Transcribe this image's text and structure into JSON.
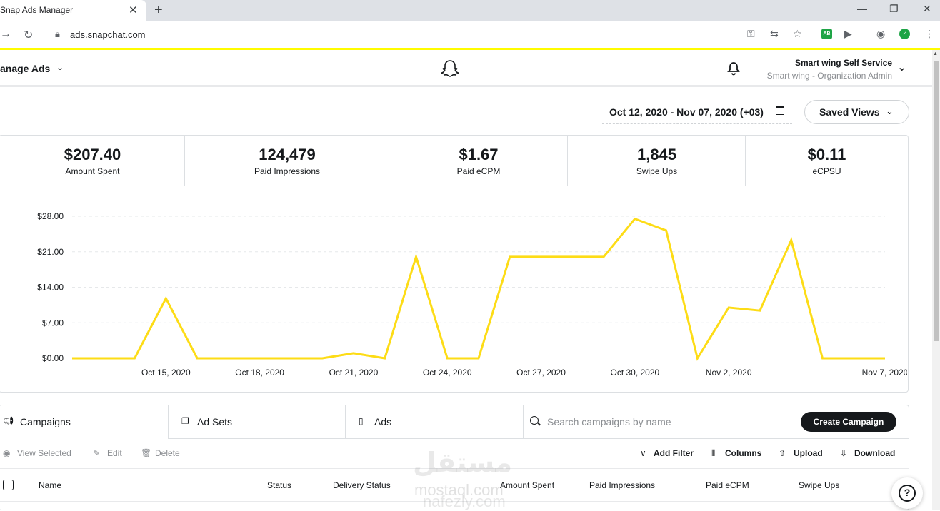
{
  "browser": {
    "tab_title": "Snap Ads Manager",
    "tab_close": "✕",
    "new_tab": "+",
    "url": "ads.snapchat.com",
    "win_min": "—",
    "win_restore": "❐",
    "win_close": "✕"
  },
  "header": {
    "menu_label": "anage Ads",
    "account_name": "Smart wing Self Service",
    "account_role": "Smart wing - Organization Admin"
  },
  "toolbar": {
    "date_range": "Oct 12, 2020 - Nov 07, 2020 (+03)",
    "saved_views": "Saved Views"
  },
  "metrics": [
    {
      "value": "$207.40",
      "label": "Amount Spent"
    },
    {
      "value": "124,479",
      "label": "Paid Impressions"
    },
    {
      "value": "$1.67",
      "label": "Paid eCPM"
    },
    {
      "value": "1,845",
      "label": "Swipe Ups"
    },
    {
      "value": "$0.11",
      "label": "eCPSU"
    }
  ],
  "chart_data": {
    "type": "line",
    "title": "",
    "xlabel": "",
    "ylabel": "",
    "ylim": [
      0,
      28
    ],
    "yticks": [
      "$0.00",
      "$7.00",
      "$14.00",
      "$21.00",
      "$28.00"
    ],
    "xtick_labels": [
      "Oct 15, 2020",
      "Oct 18, 2020",
      "Oct 21, 2020",
      "Oct 24, 2020",
      "Oct 27, 2020",
      "Oct 30, 2020",
      "Nov 2, 2020",
      "Nov 7, 2020"
    ],
    "xtick_indices": [
      3,
      6,
      9,
      12,
      15,
      18,
      21,
      26
    ],
    "x": [
      "Oct 12",
      "Oct 13",
      "Oct 14",
      "Oct 15",
      "Oct 16",
      "Oct 17",
      "Oct 18",
      "Oct 19",
      "Oct 20",
      "Oct 21",
      "Oct 22",
      "Oct 23",
      "Oct 24",
      "Oct 25",
      "Oct 26",
      "Oct 27",
      "Oct 28",
      "Oct 29",
      "Oct 30",
      "Oct 31",
      "Nov 1",
      "Nov 2",
      "Nov 3",
      "Nov 4",
      "Nov 5",
      "Nov 6",
      "Nov 7"
    ],
    "values": [
      0,
      0,
      0,
      11.8,
      0,
      0,
      0,
      0,
      0,
      1.0,
      0,
      20,
      0,
      0,
      20,
      20,
      20,
      20,
      27.5,
      25.2,
      0,
      10,
      9.4,
      23.3,
      0,
      0,
      0
    ],
    "color": "#fddc16",
    "grid": true
  },
  "table_tabs": {
    "campaigns": "Campaigns",
    "ad_sets": "Ad Sets",
    "ads": "Ads",
    "search_placeholder": "Search campaigns by name",
    "create_campaign": "Create Campaign"
  },
  "actions": {
    "view_selected": "View Selected",
    "edit": "Edit",
    "delete": "Delete",
    "add_filter": "Add Filter",
    "columns": "Columns",
    "upload": "Upload",
    "download": "Download"
  },
  "columns": [
    "Name",
    "Status",
    "Delivery Status",
    "Amount Spent",
    "Paid Impressions",
    "Paid eCPM",
    "Swipe Ups"
  ],
  "watermark": {
    "arabic": "مستقل",
    "line1": "mostaql.com",
    "line2": "nafezly.com"
  },
  "help": "?"
}
